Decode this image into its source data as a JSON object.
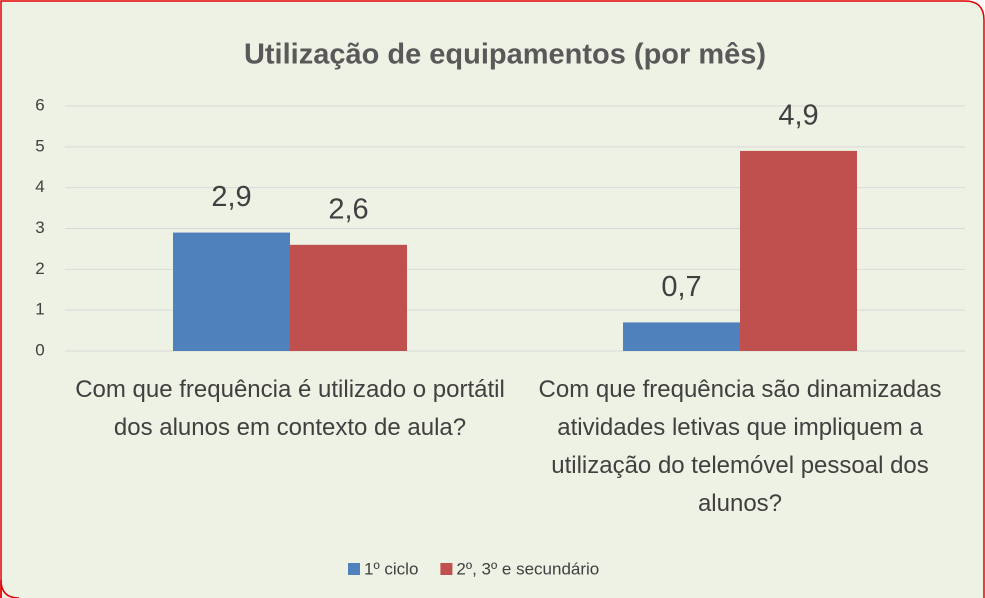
{
  "chart_data": {
    "type": "bar",
    "title": "Utilização de equipamentos (por mês)",
    "categories": [
      "Com que frequência é utilizado o portátil dos alunos em contexto de aula?",
      "Com que frequência são dinamizadas atividades letivas que impliquem a utilização do telemóvel pessoal dos alunos?"
    ],
    "series": [
      {
        "name": "1º ciclo",
        "color": "#4f81bd",
        "values": [
          2.9,
          0.7
        ],
        "value_labels": [
          "2,9",
          "0,7"
        ]
      },
      {
        "name": "2º, 3º e secundário",
        "color": "#c0504d",
        "values": [
          2.6,
          4.9
        ],
        "value_labels": [
          "2,6",
          "4,9"
        ]
      }
    ],
    "ylim": [
      0,
      6
    ],
    "yticks": [
      0,
      1,
      2,
      3,
      4,
      5,
      6
    ],
    "grid": true,
    "legend": "bottom"
  }
}
